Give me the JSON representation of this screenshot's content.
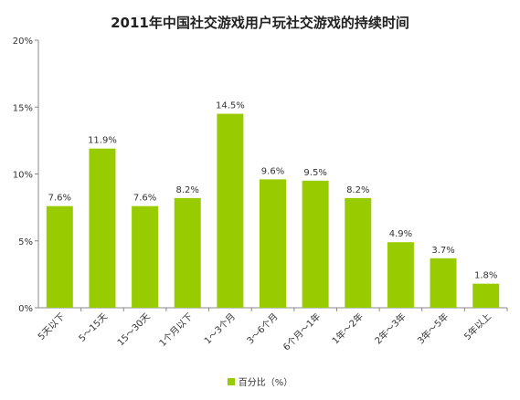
{
  "chart_data": {
    "type": "bar",
    "title": "2011年中国社交游戏用户玩社交游戏的持续时间",
    "categories": [
      "5天以下",
      "5～15天",
      "15～30天",
      "1个月以下",
      "1～3个月",
      "3～6个月",
      "6个月～1年",
      "1年～2年",
      "2年～3年",
      "3年～5年",
      "5年以上"
    ],
    "series": [
      {
        "name": "百分比（%）",
        "values": [
          7.6,
          11.9,
          7.6,
          8.2,
          14.5,
          9.6,
          9.5,
          8.2,
          4.9,
          3.7,
          1.8
        ],
        "value_labels": [
          "7.6%",
          "11.9%",
          "7.6%",
          "8.2%",
          "14.5%",
          "9.6%",
          "9.5%",
          "8.2%",
          "4.9%",
          "3.7%",
          "1.8%"
        ]
      }
    ],
    "ylim": [
      0,
      20
    ],
    "yticks": [
      0,
      5,
      10,
      15,
      20
    ],
    "ytick_labels": [
      "0%",
      "5%",
      "10%",
      "15%",
      "20%"
    ],
    "grid": false,
    "legend_position": "bottom",
    "colors": {
      "bar": "#99cc00",
      "axis": "#888888"
    }
  }
}
